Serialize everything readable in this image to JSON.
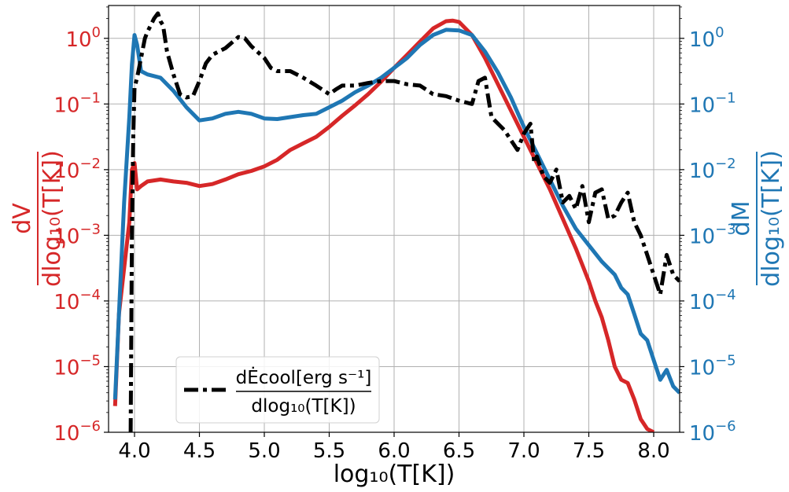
{
  "chart_data": {
    "type": "line",
    "xlabel": "log₁₀(T[K])",
    "ylabel_left": {
      "num": "dV",
      "den": "dlog₁₀(T[K])"
    },
    "ylabel_right": {
      "num": "dM",
      "den": "dlog₁₀(T[K])"
    },
    "xlim": [
      3.8,
      8.2
    ],
    "ylim_log10": [
      -6,
      0.5
    ],
    "yscale": "log",
    "grid": true,
    "legend_placement": "lower-left",
    "x_ticks": [
      "4.0",
      "4.5",
      "5.0",
      "5.5",
      "6.0",
      "6.5",
      "7.0",
      "7.5",
      "8.0"
    ],
    "y_ticks_left": [
      {
        "base": "10",
        "exp": "0"
      },
      {
        "base": "10",
        "exp": "−1"
      },
      {
        "base": "10",
        "exp": "−2"
      },
      {
        "base": "10",
        "exp": "−3"
      },
      {
        "base": "10",
        "exp": "−4"
      },
      {
        "base": "10",
        "exp": "−5"
      },
      {
        "base": "10",
        "exp": "−6"
      }
    ],
    "y_ticks_right": [
      {
        "base": "10",
        "exp": "0"
      },
      {
        "base": "10",
        "exp": "−1"
      },
      {
        "base": "10",
        "exp": "−2"
      },
      {
        "base": "10",
        "exp": "−3"
      },
      {
        "base": "10",
        "exp": "−4"
      },
      {
        "base": "10",
        "exp": "−5"
      },
      {
        "base": "10",
        "exp": "−6"
      }
    ],
    "legend_label": {
      "num": "dĖcool[erg s⁻¹]",
      "den": "dlog₁₀(T[K])"
    },
    "series": [
      {
        "key": "dV",
        "color": "#d62728",
        "style": "solid",
        "axis": "left",
        "x": [
          3.85,
          3.88,
          3.92,
          3.96,
          3.98,
          4.0,
          4.02,
          4.05,
          4.1,
          4.2,
          4.3,
          4.4,
          4.5,
          4.6,
          4.7,
          4.8,
          4.9,
          5.0,
          5.1,
          5.2,
          5.3,
          5.4,
          5.5,
          5.6,
          5.7,
          5.8,
          5.9,
          6.0,
          6.1,
          6.2,
          6.3,
          6.4,
          6.45,
          6.5,
          6.6,
          6.7,
          6.8,
          6.9,
          7.0,
          7.1,
          7.2,
          7.3,
          7.4,
          7.45,
          7.5,
          7.55,
          7.6,
          7.65,
          7.7,
          7.75,
          7.8,
          7.85,
          7.9,
          7.95,
          8.0
        ],
        "y": [
          -5.6,
          -4.2,
          -3.5,
          -2.8,
          -2.0,
          -1.9,
          -2.3,
          -2.25,
          -2.18,
          -2.15,
          -2.18,
          -2.2,
          -2.25,
          -2.22,
          -2.15,
          -2.07,
          -2.02,
          -1.95,
          -1.85,
          -1.7,
          -1.6,
          -1.5,
          -1.35,
          -1.18,
          -1.02,
          -0.85,
          -0.66,
          -0.45,
          -0.25,
          -0.05,
          0.15,
          0.26,
          0.27,
          0.25,
          0.05,
          -0.3,
          -0.7,
          -1.1,
          -1.5,
          -1.9,
          -2.3,
          -2.75,
          -3.2,
          -3.45,
          -3.7,
          -4.0,
          -4.25,
          -4.6,
          -5.0,
          -5.2,
          -5.25,
          -5.5,
          -5.8,
          -5.95,
          -6.0
        ]
      },
      {
        "key": "dM",
        "color": "#1f77b4",
        "style": "solid",
        "axis": "right",
        "x": [
          3.85,
          3.88,
          3.92,
          3.96,
          3.98,
          4.0,
          4.02,
          4.05,
          4.1,
          4.2,
          4.3,
          4.4,
          4.5,
          4.6,
          4.7,
          4.8,
          4.9,
          5.0,
          5.1,
          5.2,
          5.3,
          5.4,
          5.5,
          5.6,
          5.7,
          5.8,
          5.9,
          6.0,
          6.1,
          6.2,
          6.3,
          6.4,
          6.5,
          6.6,
          6.7,
          6.8,
          6.9,
          7.0,
          7.1,
          7.2,
          7.3,
          7.4,
          7.5,
          7.6,
          7.7,
          7.75,
          7.8,
          7.85,
          7.9,
          7.95,
          8.0,
          8.05,
          8.1,
          8.15,
          8.2
        ],
        "y": [
          -5.5,
          -4.2,
          -2.5,
          -1.2,
          -0.4,
          0.05,
          -0.1,
          -0.5,
          -0.55,
          -0.6,
          -0.8,
          -1.05,
          -1.25,
          -1.22,
          -1.15,
          -1.12,
          -1.15,
          -1.22,
          -1.23,
          -1.2,
          -1.17,
          -1.15,
          -1.05,
          -0.95,
          -0.82,
          -0.72,
          -0.6,
          -0.45,
          -0.3,
          -0.1,
          0.05,
          0.13,
          0.12,
          0.05,
          -0.2,
          -0.52,
          -0.9,
          -1.35,
          -1.75,
          -2.15,
          -2.55,
          -2.9,
          -3.15,
          -3.4,
          -3.6,
          -3.8,
          -3.9,
          -4.2,
          -4.5,
          -4.6,
          -4.9,
          -5.2,
          -5.05,
          -5.3,
          -5.4
        ]
      },
      {
        "key": "dEcool",
        "color": "#000000",
        "style": "dashdot",
        "axis": "left",
        "x": [
          3.97,
          3.98,
          3.99,
          4.0,
          4.02,
          4.05,
          4.08,
          4.1,
          4.15,
          4.18,
          4.2,
          4.22,
          4.25,
          4.3,
          4.35,
          4.4,
          4.45,
          4.5,
          4.55,
          4.6,
          4.7,
          4.8,
          4.85,
          4.9,
          5.0,
          5.05,
          5.1,
          5.2,
          5.3,
          5.4,
          5.5,
          5.55,
          5.6,
          5.7,
          5.8,
          5.9,
          6.0,
          6.1,
          6.2,
          6.3,
          6.4,
          6.5,
          6.6,
          6.65,
          6.7,
          6.75,
          6.8,
          6.85,
          6.9,
          6.95,
          7.0,
          7.05,
          7.08,
          7.1,
          7.15,
          7.2,
          7.25,
          7.3,
          7.35,
          7.4,
          7.45,
          7.5,
          7.55,
          7.6,
          7.65,
          7.7,
          7.75,
          7.8,
          7.85,
          7.9,
          7.95,
          8.0,
          8.05,
          8.1,
          8.15,
          8.2
        ],
        "y": [
          -6.0,
          -3.0,
          -1.5,
          -0.75,
          -0.6,
          -0.3,
          0.0,
          0.1,
          0.3,
          0.38,
          0.26,
          0.2,
          -0.2,
          -0.55,
          -0.85,
          -0.9,
          -0.88,
          -0.65,
          -0.38,
          -0.25,
          -0.15,
          0.02,
          0.0,
          -0.12,
          -0.3,
          -0.45,
          -0.5,
          -0.5,
          -0.6,
          -0.72,
          -0.85,
          -0.78,
          -0.72,
          -0.72,
          -0.68,
          -0.65,
          -0.65,
          -0.7,
          -0.72,
          -0.85,
          -0.88,
          -0.95,
          -1.0,
          -0.65,
          -0.6,
          -1.2,
          -1.3,
          -1.4,
          -1.55,
          -1.7,
          -1.45,
          -1.3,
          -1.9,
          -1.8,
          -2.1,
          -2.2,
          -2.0,
          -2.5,
          -2.4,
          -2.6,
          -2.25,
          -2.8,
          -2.35,
          -2.3,
          -2.75,
          -2.7,
          -2.5,
          -2.35,
          -2.8,
          -3.0,
          -3.3,
          -3.6,
          -3.9,
          -3.3,
          -3.6,
          -3.7
        ]
      }
    ]
  }
}
